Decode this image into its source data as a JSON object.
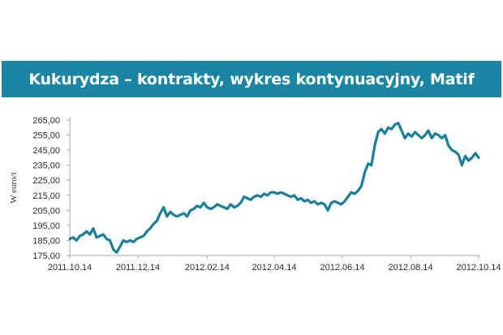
{
  "colors": {
    "banner": "#1a86a3",
    "line": "#1a7f9a",
    "axis": "#a9a9a9"
  },
  "chart_data": {
    "type": "line",
    "title": "Kukurydza – kontrakty, wykres kontynuacyjny, Matif",
    "xlabel": "",
    "ylabel": "W euro/t",
    "ylim": [
      175,
      265
    ],
    "yticks": [
      175,
      185,
      195,
      205,
      215,
      225,
      235,
      245,
      255,
      265
    ],
    "ytick_labels": [
      "175,00",
      "185,00",
      "195,00",
      "205,00",
      "215,00",
      "225,00",
      "235,00",
      "245,00",
      "255,00",
      "265,00"
    ],
    "xlim": [
      "2011-10-14",
      "2012-10-14"
    ],
    "xticks": [
      "2011-10-14",
      "2011-12-14",
      "2012-02-14",
      "2012-04-14",
      "2012-06-14",
      "2012-08-14",
      "2012-10-14"
    ],
    "xtick_labels": [
      "2011.10.14",
      "2011.12.14",
      "2012.02.14",
      "2012.04.14",
      "2012.06.14",
      "2012.08.14",
      "2012.10.14"
    ],
    "grid": false,
    "series": [
      {
        "points": [
          [
            "2011-10-14",
            186
          ],
          [
            "2011-10-17",
            187
          ],
          [
            "2011-10-20",
            185
          ],
          [
            "2011-10-23",
            188
          ],
          [
            "2011-10-26",
            189
          ],
          [
            "2011-10-29",
            191
          ],
          [
            "2011-11-01",
            189
          ],
          [
            "2011-11-04",
            193
          ],
          [
            "2011-11-07",
            187
          ],
          [
            "2011-11-10",
            188
          ],
          [
            "2011-11-13",
            189
          ],
          [
            "2011-11-16",
            186
          ],
          [
            "2011-11-19",
            185
          ],
          [
            "2011-11-22",
            179
          ],
          [
            "2011-11-25",
            177
          ],
          [
            "2011-11-28",
            181
          ],
          [
            "2011-12-01",
            185
          ],
          [
            "2011-12-04",
            184
          ],
          [
            "2011-12-07",
            185
          ],
          [
            "2011-12-10",
            184
          ],
          [
            "2011-12-13",
            186
          ],
          [
            "2011-12-16",
            187
          ],
          [
            "2011-12-19",
            188
          ],
          [
            "2011-12-22",
            191
          ],
          [
            "2011-12-25",
            193
          ],
          [
            "2011-12-28",
            196
          ],
          [
            "2011-12-31",
            198
          ],
          [
            "2012-01-03",
            203
          ],
          [
            "2012-01-06",
            207
          ],
          [
            "2012-01-09",
            201
          ],
          [
            "2012-01-12",
            204
          ],
          [
            "2012-01-15",
            202
          ],
          [
            "2012-01-18",
            201
          ],
          [
            "2012-01-21",
            202
          ],
          [
            "2012-01-24",
            203
          ],
          [
            "2012-01-27",
            201
          ],
          [
            "2012-01-30",
            205
          ],
          [
            "2012-02-02",
            206
          ],
          [
            "2012-02-05",
            208
          ],
          [
            "2012-02-08",
            207
          ],
          [
            "2012-02-11",
            210
          ],
          [
            "2012-02-14",
            207
          ],
          [
            "2012-02-17",
            206
          ],
          [
            "2012-02-20",
            207
          ],
          [
            "2012-02-23",
            209
          ],
          [
            "2012-02-26",
            208
          ],
          [
            "2012-02-29",
            207
          ],
          [
            "2012-03-03",
            206
          ],
          [
            "2012-03-06",
            209
          ],
          [
            "2012-03-09",
            207
          ],
          [
            "2012-03-12",
            208
          ],
          [
            "2012-03-15",
            210
          ],
          [
            "2012-03-18",
            214
          ],
          [
            "2012-03-21",
            213
          ],
          [
            "2012-03-24",
            212
          ],
          [
            "2012-03-27",
            214
          ],
          [
            "2012-03-30",
            215
          ],
          [
            "2012-04-02",
            214
          ],
          [
            "2012-04-05",
            216
          ],
          [
            "2012-04-08",
            215
          ],
          [
            "2012-04-11",
            217
          ],
          [
            "2012-04-14",
            217
          ],
          [
            "2012-04-17",
            216
          ],
          [
            "2012-04-20",
            217
          ],
          [
            "2012-04-23",
            216
          ],
          [
            "2012-04-26",
            215
          ],
          [
            "2012-04-29",
            214
          ],
          [
            "2012-05-02",
            215
          ],
          [
            "2012-05-05",
            212
          ],
          [
            "2012-05-08",
            213
          ],
          [
            "2012-05-11",
            211
          ],
          [
            "2012-05-14",
            212
          ],
          [
            "2012-05-17",
            210
          ],
          [
            "2012-05-20",
            211
          ],
          [
            "2012-05-23",
            209
          ],
          [
            "2012-05-26",
            210
          ],
          [
            "2012-05-29",
            209
          ],
          [
            "2012-06-01",
            205
          ],
          [
            "2012-06-04",
            210
          ],
          [
            "2012-06-07",
            211
          ],
          [
            "2012-06-10",
            210
          ],
          [
            "2012-06-13",
            209
          ],
          [
            "2012-06-16",
            211
          ],
          [
            "2012-06-19",
            214
          ],
          [
            "2012-06-22",
            217
          ],
          [
            "2012-06-25",
            216
          ],
          [
            "2012-06-28",
            218
          ],
          [
            "2012-07-01",
            221
          ],
          [
            "2012-07-04",
            230
          ],
          [
            "2012-07-07",
            236
          ],
          [
            "2012-07-10",
            235
          ],
          [
            "2012-07-13",
            248
          ],
          [
            "2012-07-16",
            257
          ],
          [
            "2012-07-19",
            259
          ],
          [
            "2012-07-22",
            256
          ],
          [
            "2012-07-25",
            260
          ],
          [
            "2012-07-28",
            259
          ],
          [
            "2012-07-31",
            262
          ],
          [
            "2012-08-03",
            263
          ],
          [
            "2012-08-06",
            258
          ],
          [
            "2012-08-09",
            253
          ],
          [
            "2012-08-12",
            256
          ],
          [
            "2012-08-15",
            254
          ],
          [
            "2012-08-18",
            257
          ],
          [
            "2012-08-21",
            255
          ],
          [
            "2012-08-24",
            253
          ],
          [
            "2012-08-27",
            255
          ],
          [
            "2012-08-30",
            258
          ],
          [
            "2012-09-02",
            253
          ],
          [
            "2012-09-05",
            256
          ],
          [
            "2012-09-08",
            255
          ],
          [
            "2012-09-11",
            253
          ],
          [
            "2012-09-14",
            255
          ],
          [
            "2012-09-17",
            248
          ],
          [
            "2012-09-20",
            245
          ],
          [
            "2012-09-23",
            244
          ],
          [
            "2012-09-26",
            242
          ],
          [
            "2012-09-29",
            235
          ],
          [
            "2012-10-02",
            241
          ],
          [
            "2012-10-05",
            238
          ],
          [
            "2012-10-08",
            240
          ],
          [
            "2012-10-11",
            243
          ],
          [
            "2012-10-14",
            240
          ]
        ]
      }
    ]
  }
}
